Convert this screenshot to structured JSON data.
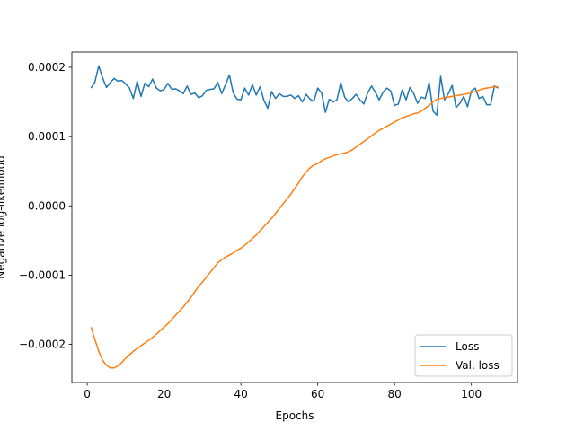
{
  "chart_data": {
    "type": "line",
    "title": "",
    "xlabel": "Epochs",
    "ylabel": "Negative log-likelihood",
    "xlim": [
      -4,
      112
    ],
    "ylim": [
      -0.000255,
      0.000222
    ],
    "xticks": [
      0,
      20,
      40,
      60,
      80,
      100
    ],
    "xtick_labels": [
      "0",
      "20",
      "40",
      "60",
      "80",
      "100"
    ],
    "yticks": [
      -0.0002,
      -0.0001,
      0.0,
      0.0001,
      0.0002
    ],
    "ytick_labels": [
      "−0.0002",
      "−0.0001",
      "0.0000",
      "0.0001",
      "0.0002"
    ],
    "grid": false,
    "legend_position": "lower-right",
    "series": [
      {
        "name": "Loss",
        "color": "#1f77b4",
        "x": [
          1,
          2,
          3,
          4,
          5,
          6,
          7,
          8,
          9,
          10,
          11,
          12,
          13,
          14,
          15,
          16,
          17,
          18,
          19,
          20,
          21,
          22,
          23,
          24,
          25,
          26,
          27,
          28,
          29,
          30,
          31,
          32,
          33,
          34,
          35,
          36,
          37,
          38,
          39,
          40,
          41,
          42,
          43,
          44,
          45,
          46,
          47,
          48,
          49,
          50,
          51,
          52,
          53,
          54,
          55,
          56,
          57,
          58,
          59,
          60,
          61,
          62,
          63,
          64,
          65,
          66,
          67,
          68,
          69,
          70,
          71,
          72,
          73,
          74,
          75,
          76,
          77,
          78,
          79,
          80,
          81,
          82,
          83,
          84,
          85,
          86,
          87,
          88,
          89,
          90,
          91,
          92,
          93,
          94,
          95,
          96,
          97,
          98,
          99,
          100,
          101,
          102,
          103,
          104,
          105,
          106,
          107
        ],
        "y": [
          0.00017,
          0.000179,
          0.000202,
          0.000185,
          0.000171,
          0.000178,
          0.000184,
          0.00018,
          0.000181,
          0.000176,
          0.00017,
          0.000155,
          0.00018,
          0.000158,
          0.000177,
          0.000172,
          0.000183,
          0.00017,
          0.000166,
          0.000168,
          0.000177,
          0.000168,
          0.000169,
          0.000166,
          0.000162,
          0.000173,
          0.000161,
          0.000163,
          0.000156,
          0.000159,
          0.000167,
          0.000168,
          0.000169,
          0.000178,
          0.000162,
          0.000175,
          0.000189,
          0.000163,
          0.000154,
          0.000153,
          0.00017,
          0.00016,
          0.000175,
          0.00016,
          0.000172,
          0.000152,
          0.000141,
          0.000165,
          0.000155,
          0.000162,
          0.000158,
          0.000158,
          0.00016,
          0.000155,
          0.000159,
          0.00015,
          0.000161,
          0.000154,
          0.000151,
          0.00017,
          0.000163,
          0.000135,
          0.000154,
          0.00015,
          0.000153,
          0.000178,
          0.000157,
          0.00015,
          0.000155,
          0.000161,
          0.000153,
          0.000147,
          0.000163,
          0.000173,
          0.000164,
          0.000153,
          0.000164,
          0.00017,
          0.000166,
          0.000145,
          0.000147,
          0.000168,
          0.000153,
          0.000171,
          0.000162,
          0.000148,
          0.000157,
          0.000155,
          0.000178,
          0.000137,
          0.000131,
          0.000187,
          0.000153,
          0.000162,
          0.000174,
          0.000142,
          0.000148,
          0.000158,
          0.000143,
          0.000166,
          0.00017,
          0.000155,
          0.000158,
          0.000146,
          0.000146,
          0.000173,
          0.00017
        ]
      },
      {
        "name": "Val. loss",
        "color": "#ff7f0e",
        "x": [
          1,
          2,
          3,
          4,
          5,
          6,
          7,
          8,
          9,
          10,
          11,
          12,
          13,
          14,
          15,
          16,
          17,
          18,
          19,
          20,
          21,
          22,
          23,
          24,
          25,
          26,
          27,
          28,
          29,
          30,
          31,
          32,
          33,
          34,
          35,
          36,
          37,
          38,
          39,
          40,
          41,
          42,
          43,
          44,
          45,
          46,
          47,
          48,
          49,
          50,
          51,
          52,
          53,
          54,
          55,
          56,
          57,
          58,
          59,
          60,
          61,
          62,
          63,
          64,
          65,
          66,
          67,
          68,
          69,
          70,
          71,
          72,
          73,
          74,
          75,
          76,
          77,
          78,
          79,
          80,
          81,
          82,
          83,
          84,
          85,
          86,
          87,
          88,
          89,
          90,
          91,
          92,
          93,
          94,
          95,
          96,
          97,
          98,
          99,
          100,
          101,
          102,
          103,
          104,
          105,
          106,
          107
        ],
        "y": [
          -0.000175,
          -0.000193,
          -0.00021,
          -0.000223,
          -0.00023,
          -0.000234,
          -0.000234,
          -0.000231,
          -0.000226,
          -0.00022,
          -0.000215,
          -0.00021,
          -0.000206,
          -0.000202,
          -0.000198,
          -0.000194,
          -0.00019,
          -0.000185,
          -0.00018,
          -0.000175,
          -0.00017,
          -0.000164,
          -0.000158,
          -0.000152,
          -0.000146,
          -0.000139,
          -0.000132,
          -0.000124,
          -0.000116,
          -0.00011,
          -0.000103,
          -9.6e-05,
          -8.9e-05,
          -8.2e-05,
          -7.8e-05,
          -7.4e-05,
          -7.1e-05,
          -6.8e-05,
          -6.4e-05,
          -6.1e-05,
          -5.7e-05,
          -5.2e-05,
          -4.7e-05,
          -4.2e-05,
          -3.6e-05,
          -3e-05,
          -2.4e-05,
          -1.8e-05,
          -1.1e-05,
          -4e-06,
          3e-06,
          1e-05,
          1.7e-05,
          2.5e-05,
          3.3e-05,
          4.2e-05,
          4.9e-05,
          5.5e-05,
          5.9e-05,
          6.1e-05,
          6.5e-05,
          6.8e-05,
          7e-05,
          7.2e-05,
          7.4e-05,
          7.5e-05,
          7.6e-05,
          7.8e-05,
          8.1e-05,
          8.5e-05,
          8.9e-05,
          9.3e-05,
          9.7e-05,
          0.000101,
          0.000105,
          0.000109,
          0.000112,
          0.000115,
          0.000118,
          0.000121,
          0.000124,
          0.000127,
          0.000129,
          0.000131,
          0.000133,
          0.000134,
          0.000137,
          0.000141,
          0.000145,
          0.00015,
          0.000154,
          0.000155,
          0.000156,
          0.000157,
          0.000158,
          0.000159,
          0.00016,
          0.000161,
          0.000162,
          0.000163,
          0.000165,
          0.000167,
          0.000169,
          0.00017,
          0.000171,
          0.000172,
          0.000172
        ]
      }
    ]
  }
}
